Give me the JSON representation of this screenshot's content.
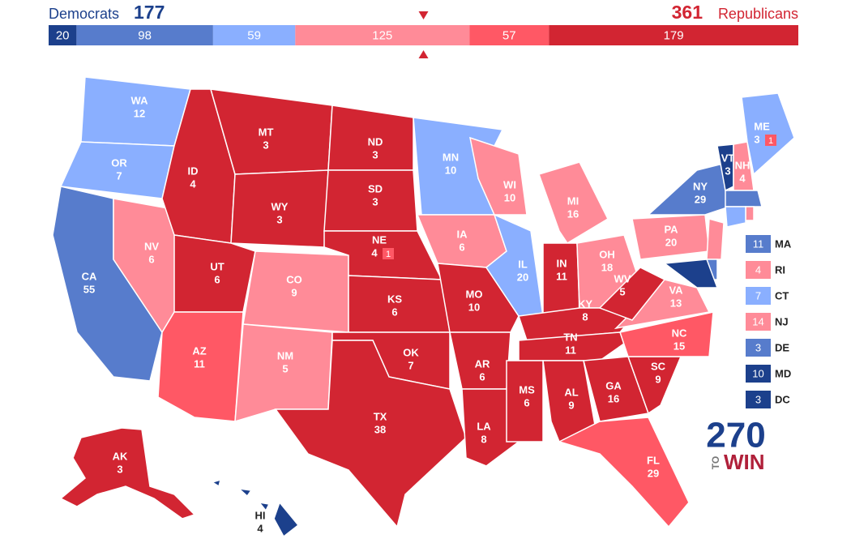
{
  "header": {
    "dem_label": "Democrats",
    "dem_total": 177,
    "rep_total": 361,
    "rep_label": "Republicans"
  },
  "bar": [
    {
      "value": 20,
      "color": "#1c408c"
    },
    {
      "value": 98,
      "color": "#577ccc"
    },
    {
      "value": 59,
      "color": "#8aafff"
    },
    {
      "value": 125,
      "color": "#ff8b98"
    },
    {
      "value": 57,
      "color": "#ff5865"
    },
    {
      "value": 179,
      "color": "#d22532"
    }
  ],
  "states": [
    {
      "label": "WA",
      "ev": 12,
      "color": "#8aafff"
    },
    {
      "label": "OR",
      "ev": 7,
      "color": "#8aafff"
    },
    {
      "label": "CA",
      "ev": 55,
      "color": "#577ccc"
    },
    {
      "label": "NV",
      "ev": 6,
      "color": "#ff8b98"
    },
    {
      "label": "ID",
      "ev": 4,
      "color": "#d22532"
    },
    {
      "label": "MT",
      "ev": 3,
      "color": "#d22532"
    },
    {
      "label": "WY",
      "ev": 3,
      "color": "#d22532"
    },
    {
      "label": "UT",
      "ev": 6,
      "color": "#d22532"
    },
    {
      "label": "AZ",
      "ev": 11,
      "color": "#ff5865"
    },
    {
      "label": "CO",
      "ev": 9,
      "color": "#ff8b98"
    },
    {
      "label": "NM",
      "ev": 5,
      "color": "#ff8b98"
    },
    {
      "label": "ND",
      "ev": 3,
      "color": "#d22532"
    },
    {
      "label": "SD",
      "ev": 3,
      "color": "#d22532"
    },
    {
      "label": "NE",
      "ev": 4,
      "district_ev": 1,
      "color": "#d22532"
    },
    {
      "label": "KS",
      "ev": 6,
      "color": "#d22532"
    },
    {
      "label": "OK",
      "ev": 7,
      "color": "#d22532"
    },
    {
      "label": "TX",
      "ev": 38,
      "color": "#d22532"
    },
    {
      "label": "MN",
      "ev": 10,
      "color": "#8aafff"
    },
    {
      "label": "IA",
      "ev": 6,
      "color": "#ff8b98"
    },
    {
      "label": "MO",
      "ev": 10,
      "color": "#d22532"
    },
    {
      "label": "AR",
      "ev": 6,
      "color": "#d22532"
    },
    {
      "label": "LA",
      "ev": 8,
      "color": "#d22532"
    },
    {
      "label": "WI",
      "ev": 10,
      "color": "#ff8b98"
    },
    {
      "label": "IL",
      "ev": 20,
      "color": "#8aafff"
    },
    {
      "label": "MI",
      "ev": 16,
      "color": "#ff8b98"
    },
    {
      "label": "IN",
      "ev": 11,
      "color": "#d22532"
    },
    {
      "label": "OH",
      "ev": 18,
      "color": "#ff8b98"
    },
    {
      "label": "KY",
      "ev": 8,
      "color": "#d22532"
    },
    {
      "label": "TN",
      "ev": 11,
      "color": "#d22532"
    },
    {
      "label": "MS",
      "ev": 6,
      "color": "#d22532"
    },
    {
      "label": "AL",
      "ev": 9,
      "color": "#d22532"
    },
    {
      "label": "GA",
      "ev": 16,
      "color": "#d22532"
    },
    {
      "label": "FL",
      "ev": 29,
      "color": "#ff5865"
    },
    {
      "label": "SC",
      "ev": 9,
      "color": "#d22532"
    },
    {
      "label": "NC",
      "ev": 15,
      "color": "#ff5865"
    },
    {
      "label": "VA",
      "ev": 13,
      "color": "#ff8b98"
    },
    {
      "label": "WV",
      "ev": 5,
      "color": "#d22532"
    },
    {
      "label": "PA",
      "ev": 20,
      "color": "#ff8b98"
    },
    {
      "label": "NY",
      "ev": 29,
      "color": "#577ccc"
    },
    {
      "label": "VT",
      "ev": 3,
      "color": "#1c408c"
    },
    {
      "label": "NH",
      "ev": 4,
      "color": "#ff8b98"
    },
    {
      "label": "ME",
      "ev": 3,
      "district_ev": 1,
      "color": "#8aafff"
    },
    {
      "label": "AK",
      "ev": 3,
      "color": "#d22532"
    },
    {
      "label": "HI",
      "ev": 4,
      "color": "#1c408c"
    },
    {
      "label": "MA",
      "ev": 11,
      "color": "#577ccc",
      "inset": true
    },
    {
      "label": "RI",
      "ev": 4,
      "color": "#ff8b98",
      "inset": true
    },
    {
      "label": "CT",
      "ev": 7,
      "color": "#8aafff",
      "inset": true
    },
    {
      "label": "NJ",
      "ev": 14,
      "color": "#ff8b98",
      "inset": true
    },
    {
      "label": "DE",
      "ev": 3,
      "color": "#577ccc",
      "inset": true
    },
    {
      "label": "MD",
      "ev": 10,
      "color": "#1c408c",
      "inset": true
    },
    {
      "label": "DC",
      "ev": 3,
      "color": "#1c408c",
      "inset": true
    }
  ],
  "logo": {
    "number": "270",
    "to": "TO",
    "win": "WIN"
  }
}
